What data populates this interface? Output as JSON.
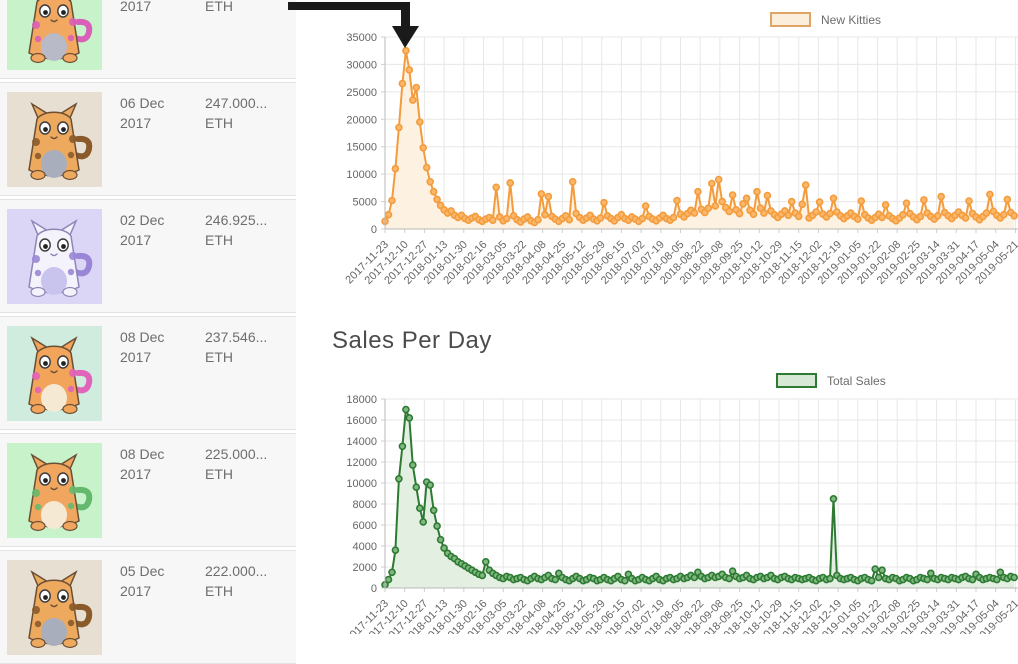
{
  "kitty_list": {
    "items": [
      {
        "date_line1": "",
        "date_line2": "2017",
        "price_line1": "",
        "price_line2": "ETH",
        "image_bg": "#c8f2c9",
        "body": "#f2a860",
        "accent": "#d95fb8",
        "belly": "#b9bac8",
        "outline": "#6b4f35"
      },
      {
        "date_line1": "06 Dec",
        "date_line2": "2017",
        "price_line1": "247.000...",
        "price_line2": "ETH",
        "image_bg": "#e8dfd3",
        "body": "#eda95e",
        "accent": "#8a5a2a",
        "belly": "#a9aebc",
        "outline": "#6b4f35"
      },
      {
        "date_line1": "02 Dec",
        "date_line2": "2017",
        "price_line1": "246.925...",
        "price_line2": "ETH",
        "image_bg": "#dbd6f5",
        "body": "#f4f2fa",
        "accent": "#9a86d6",
        "belly": "#c9c4ee",
        "outline": "#8f86b8"
      },
      {
        "date_line1": "08 Dec",
        "date_line2": "2017",
        "price_line1": "237.546...",
        "price_line2": "ETH",
        "image_bg": "#cfecdf",
        "body": "#f2a45b",
        "accent": "#e263ba",
        "belly": "#f6e9d4",
        "outline": "#6b4f35"
      },
      {
        "date_line1": "08 Dec",
        "date_line2": "2017",
        "price_line1": "225.000...",
        "price_line2": "ETH",
        "image_bg": "#c8f2c9",
        "body": "#f0a65e",
        "accent": "#64b96e",
        "belly": "#f6e9d4",
        "outline": "#6b4f35"
      },
      {
        "date_line1": "05 Dec",
        "date_line2": "2017",
        "price_line1": "222.000...",
        "price_line2": "ETH",
        "image_bg": "#e8dfd3",
        "body": "#eda95e",
        "accent": "#8a5a2a",
        "belly": "#a9aebc",
        "outline": "#6b4f35"
      }
    ]
  },
  "annotation": {
    "type": "arrow-down-at-peak",
    "color": "#1a1a1a"
  },
  "chart_data": [
    {
      "type": "line",
      "legend": "New Kitties",
      "color": "#f39c3d",
      "fill": "#fdf1e2",
      "marker_fill": "#fbb76a",
      "ylim": [
        0,
        35000
      ],
      "y_ticks": [
        0,
        5000,
        10000,
        15000,
        20000,
        25000,
        30000,
        35000
      ],
      "x_start": "2017-11-23",
      "x_tick_interval_days": 17,
      "point_step_days": 3,
      "grid": true,
      "legend_position": "top-right",
      "x_tick_labels": [
        "2017-11-23",
        "2017-12-10",
        "2017-12-27",
        "2018-01-13",
        "2018-01-30",
        "2018-02-16",
        "2018-03-05",
        "2018-03-22",
        "2018-04-08",
        "2018-04-25",
        "2018-05-12",
        "2018-05-29",
        "2018-06-15",
        "2018-07-02",
        "2018-07-19",
        "2018-08-05",
        "2018-08-22",
        "2018-09-08",
        "2018-09-25",
        "2018-10-12",
        "2018-10-29",
        "2018-11-15",
        "2018-12-02",
        "2018-12-19",
        "2019-01-05",
        "2019-01-22",
        "2019-02-08",
        "2019-02-25",
        "2019-03-14",
        "2019-03-31",
        "2019-04-17",
        "2019-05-04",
        "2019-05-21"
      ],
      "values": [
        1400,
        2600,
        5200,
        11000,
        18500,
        26500,
        32500,
        29000,
        23500,
        25800,
        19500,
        14800,
        11200,
        8600,
        6800,
        5400,
        4300,
        3500,
        2900,
        3300,
        2500,
        2100,
        2500,
        1900,
        1600,
        2000,
        2300,
        1700,
        1400,
        1800,
        2100,
        1600,
        7600,
        2200,
        1500,
        1900,
        8400,
        2400,
        1700,
        1300,
        1800,
        2200,
        1500,
        1200,
        1700,
        6400,
        2600,
        5900,
        2300,
        1800,
        1400,
        1900,
        2400,
        1700,
        8600,
        2800,
        2100,
        1600,
        2000,
        2500,
        1800,
        1500,
        2000,
        4800,
        2400,
        1900,
        1500,
        2100,
        2600,
        1900,
        1600,
        2200,
        1800,
        1400,
        1900,
        4200,
        2300,
        1800,
        1500,
        2000,
        2500,
        1900,
        1600,
        2100,
        5200,
        2700,
        2200,
        2800,
        3400,
        2900,
        6800,
        3600,
        3000,
        3800,
        8300,
        4200,
        9000,
        5000,
        3900,
        3200,
        6200,
        3500,
        2800,
        4600,
        5600,
        3400,
        2700,
        6800,
        3800,
        2900,
        6100,
        3300,
        2600,
        2100,
        2700,
        3300,
        2500,
        5000,
        2900,
        2300,
        4500,
        8000,
        2000,
        2500,
        3100,
        4900,
        2700,
        2200,
        2800,
        5600,
        3100,
        2400,
        1900,
        2400,
        2900,
        2300,
        1800,
        5100,
        2600,
        2000,
        1600,
        2100,
        2700,
        2100,
        4400,
        2400,
        1900,
        1500,
        2000,
        2600,
        4700,
        2800,
        2200,
        1700,
        2300,
        5300,
        2900,
        2300,
        1800,
        2400,
        5900,
        3000,
        2400,
        1900,
        2500,
        3100,
        2500,
        2000,
        5100,
        2800,
        2200,
        1700,
        2300,
        2900,
        6300,
        3200,
        2500,
        2000,
        2600,
        5400,
        3000,
        2400
      ]
    },
    {
      "type": "line",
      "title": "Sales Per Day",
      "legend": "Total Sales",
      "color": "#2e7a33",
      "fill": "#e3efe1",
      "marker_fill": "#7fb981",
      "ylim": [
        0,
        18000
      ],
      "y_ticks": [
        0,
        2000,
        4000,
        6000,
        8000,
        10000,
        12000,
        14000,
        16000,
        18000
      ],
      "x_start": "2017-11-23",
      "x_tick_interval_days": 17,
      "point_step_days": 3,
      "grid": true,
      "legend_position": "top-right",
      "x_tick_labels": [
        "2017-11-23",
        "2017-12-10",
        "2017-12-27",
        "2018-01-13",
        "2018-01-30",
        "2018-02-16",
        "2018-03-05",
        "2018-03-22",
        "2018-04-08",
        "2018-04-25",
        "2018-05-12",
        "2018-05-29",
        "2018-06-15",
        "2018-07-02",
        "2018-07-19",
        "2018-08-05",
        "2018-08-22",
        "2018-09-08",
        "2018-09-25",
        "2018-10-12",
        "2018-10-29",
        "2018-11-15",
        "2018-12-02",
        "2018-12-19",
        "2019-01-05",
        "2019-01-22",
        "2019-02-08",
        "2019-02-25",
        "2019-03-14",
        "2019-03-31",
        "2019-04-17",
        "2019-05-04",
        "2019-05-21"
      ],
      "values": [
        300,
        800,
        1500,
        3600,
        10400,
        13500,
        17000,
        16200,
        11700,
        9600,
        7600,
        6300,
        10100,
        9800,
        7400,
        5900,
        4600,
        3800,
        3300,
        3000,
        2800,
        2500,
        2300,
        2100,
        1900,
        1700,
        1500,
        1300,
        1200,
        2500,
        1700,
        1400,
        1200,
        1000,
        900,
        1100,
        1000,
        800,
        900,
        1000,
        800,
        700,
        900,
        1100,
        900,
        800,
        1000,
        1200,
        900,
        800,
        1400,
        1000,
        800,
        700,
        900,
        1100,
        900,
        700,
        800,
        1000,
        900,
        700,
        800,
        1000,
        800,
        700,
        900,
        1100,
        800,
        700,
        1300,
        900,
        700,
        800,
        1000,
        800,
        700,
        900,
        1100,
        800,
        700,
        900,
        1000,
        800,
        900,
        1100,
        900,
        1000,
        1200,
        1000,
        1500,
        1100,
        900,
        1000,
        1200,
        1000,
        1100,
        1300,
        1000,
        900,
        1600,
        1100,
        900,
        1000,
        1200,
        900,
        800,
        1000,
        1100,
        900,
        1000,
        1200,
        900,
        800,
        1000,
        1100,
        900,
        800,
        1000,
        900,
        800,
        900,
        1000,
        800,
        700,
        900,
        1000,
        800,
        900,
        8500,
        1200,
        900,
        800,
        900,
        1000,
        800,
        700,
        900,
        1000,
        800,
        700,
        1800,
        1000,
        1700,
        900,
        800,
        1000,
        900,
        700,
        800,
        1000,
        900,
        700,
        800,
        1000,
        900,
        800,
        1400,
        900,
        800,
        1000,
        900,
        800,
        1000,
        900,
        800,
        1000,
        1100,
        900,
        800,
        1300,
        1000,
        800,
        900,
        1000,
        900,
        800,
        1500,
        1000,
        900,
        1100,
        1000
      ]
    }
  ]
}
